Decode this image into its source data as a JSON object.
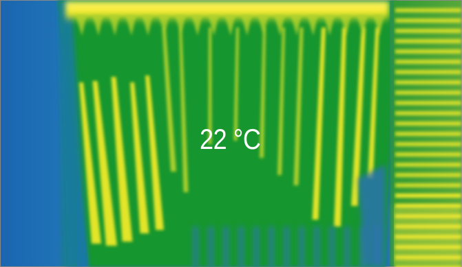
{
  "image": {
    "overlay_text": "22 °C",
    "colors": {
      "cold_blue": "#1f6fb8",
      "mid_green": "#11942f",
      "warm_yellow": "#f6ee26",
      "border_gray": "#8a8a8a"
    }
  }
}
